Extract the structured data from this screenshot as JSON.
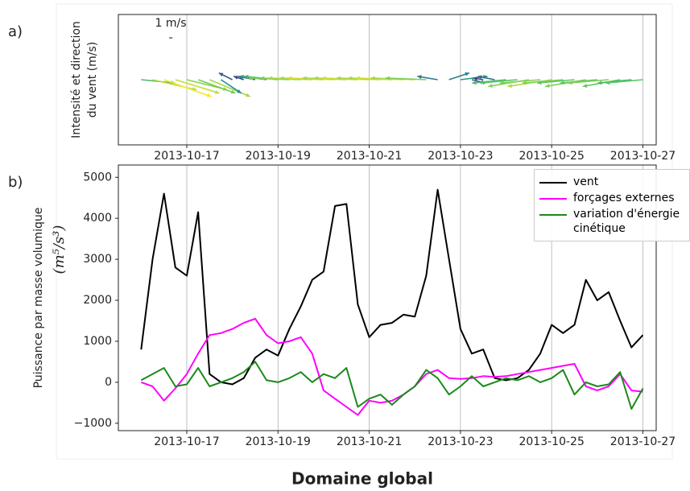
{
  "caption": "Domaine global",
  "chart_data": [
    {
      "type": "quiver",
      "panel_label": "a)",
      "ylabel": [
        "Intensité et direction",
        "du vent (m/s)"
      ],
      "quiver_key": {
        "label": "1 m/s",
        "value": 1
      },
      "colormap": "viridis",
      "clim": [
        0,
        15
      ],
      "grid": "x",
      "xlim": [
        "2013-10-15 12:00",
        "2013-10-27 07:00"
      ],
      "xticks": [
        "2013-10-17",
        "2013-10-19",
        "2013-10-21",
        "2013-10-23",
        "2013-10-25",
        "2013-10-27"
      ],
      "x": [
        "2013-10-16 00:00",
        "2013-10-16 06:00",
        "2013-10-16 12:00",
        "2013-10-16 18:00",
        "2013-10-17 00:00",
        "2013-10-17 06:00",
        "2013-10-17 12:00",
        "2013-10-17 18:00",
        "2013-10-18 00:00",
        "2013-10-18 06:00",
        "2013-10-18 12:00",
        "2013-10-18 18:00",
        "2013-10-19 00:00",
        "2013-10-19 06:00",
        "2013-10-19 12:00",
        "2013-10-19 18:00",
        "2013-10-20 00:00",
        "2013-10-20 06:00",
        "2013-10-20 12:00",
        "2013-10-20 18:00",
        "2013-10-21 00:00",
        "2013-10-21 06:00",
        "2013-10-21 12:00",
        "2013-10-21 18:00",
        "2013-10-22 00:00",
        "2013-10-22 06:00",
        "2013-10-22 12:00",
        "2013-10-22 18:00",
        "2013-10-23 00:00",
        "2013-10-23 06:00",
        "2013-10-23 12:00",
        "2013-10-23 18:00",
        "2013-10-24 00:00",
        "2013-10-24 06:00",
        "2013-10-24 12:00",
        "2013-10-24 18:00",
        "2013-10-25 00:00",
        "2013-10-25 06:00",
        "2013-10-25 12:00",
        "2013-10-25 18:00",
        "2013-10-26 00:00",
        "2013-10-26 06:00",
        "2013-10-26 12:00",
        "2013-10-26 18:00",
        "2013-10-27 00:00"
      ],
      "u": [
        10,
        13,
        14,
        13,
        12,
        11,
        12,
        6,
        -4,
        -3,
        -5,
        -8,
        -10,
        -12,
        -12,
        -13,
        -13,
        -14,
        -13,
        -13,
        -14,
        -13,
        -13,
        -14,
        -13,
        -12,
        -6,
        6,
        8,
        4,
        -3,
        -5,
        -10,
        -11,
        -12,
        -12,
        -13,
        -12,
        -11,
        -12,
        -11,
        -12,
        -11,
        -10,
        -11
      ],
      "v": [
        -1,
        -3,
        -5,
        -4,
        -3,
        -4,
        -5,
        -4,
        2,
        1,
        1,
        1,
        1,
        0.5,
        0.5,
        0.5,
        0.5,
        0.5,
        0.5,
        0.5,
        0.5,
        0.5,
        0.5,
        0.5,
        0.5,
        0.5,
        1,
        2,
        1,
        -1,
        0.5,
        1,
        -1,
        -1,
        -2,
        -1,
        -2,
        -1,
        -1,
        -2,
        -1,
        -1,
        -2,
        -1,
        -1
      ]
    },
    {
      "type": "line",
      "panel_label": "b)",
      "ylabel": "Puissance par masse volumique",
      "ylabel_units": "(m⁵/s³)",
      "grid": "x",
      "legend": "upper right",
      "xlim": [
        "2013-10-15 12:00",
        "2013-10-27 07:00"
      ],
      "xticks": [
        "2013-10-17",
        "2013-10-19",
        "2013-10-21",
        "2013-10-23",
        "2013-10-25",
        "2013-10-27"
      ],
      "ylim": [
        -1180,
        5300
      ],
      "yticks": [
        {
          "value": -1000,
          "label": "−1000"
        },
        0,
        1000,
        2000,
        3000,
        4000,
        5000
      ],
      "x": [
        "2013-10-16 00:00",
        "2013-10-16 06:00",
        "2013-10-16 12:00",
        "2013-10-16 18:00",
        "2013-10-17 00:00",
        "2013-10-17 06:00",
        "2013-10-17 12:00",
        "2013-10-17 18:00",
        "2013-10-18 00:00",
        "2013-10-18 06:00",
        "2013-10-18 12:00",
        "2013-10-18 18:00",
        "2013-10-19 00:00",
        "2013-10-19 06:00",
        "2013-10-19 12:00",
        "2013-10-19 18:00",
        "2013-10-20 00:00",
        "2013-10-20 06:00",
        "2013-10-20 12:00",
        "2013-10-20 18:00",
        "2013-10-21 00:00",
        "2013-10-21 06:00",
        "2013-10-21 12:00",
        "2013-10-21 18:00",
        "2013-10-22 00:00",
        "2013-10-22 06:00",
        "2013-10-22 12:00",
        "2013-10-22 18:00",
        "2013-10-23 00:00",
        "2013-10-23 06:00",
        "2013-10-23 12:00",
        "2013-10-23 18:00",
        "2013-10-24 00:00",
        "2013-10-24 06:00",
        "2013-10-24 12:00",
        "2013-10-24 18:00",
        "2013-10-25 00:00",
        "2013-10-25 06:00",
        "2013-10-25 12:00",
        "2013-10-25 18:00",
        "2013-10-26 00:00",
        "2013-10-26 06:00",
        "2013-10-26 12:00",
        "2013-10-26 18:00",
        "2013-10-27 00:00"
      ],
      "series": [
        {
          "name": "vent",
          "color": "#000000",
          "values": [
            800,
            3000,
            4600,
            2800,
            2600,
            4150,
            200,
            0,
            -50,
            100,
            600,
            800,
            650,
            1300,
            1850,
            2500,
            2700,
            4300,
            4350,
            1900,
            1100,
            1400,
            1450,
            1650,
            1600,
            2600,
            4700,
            3000,
            1300,
            700,
            800,
            100,
            50,
            100,
            300,
            700,
            1400,
            1200,
            1400,
            2500,
            2000,
            2200,
            1500,
            850,
            1150
          ]
        },
        {
          "name": "forçages externes",
          "color": "#ff00ff",
          "values": [
            0,
            -100,
            -450,
            -150,
            200,
            700,
            1150,
            1200,
            1300,
            1450,
            1550,
            1150,
            950,
            1000,
            1100,
            700,
            -200,
            -400,
            -600,
            -800,
            -450,
            -500,
            -450,
            -300,
            -100,
            200,
            300,
            100,
            80,
            100,
            150,
            130,
            150,
            200,
            250,
            300,
            350,
            400,
            450,
            -100,
            -200,
            -100,
            200,
            -200,
            -230
          ]
        },
        {
          "name": "variation d'énergie cinétique",
          "color": "#1a8a1a",
          "values": [
            50,
            200,
            350,
            -100,
            -50,
            350,
            -100,
            0,
            100,
            250,
            500,
            50,
            0,
            100,
            250,
            0,
            200,
            100,
            350,
            -600,
            -400,
            -300,
            -550,
            -300,
            -100,
            300,
            100,
            -300,
            -100,
            150,
            -100,
            0,
            100,
            50,
            150,
            0,
            100,
            300,
            -300,
            0,
            -100,
            -50,
            250,
            -650,
            -150
          ]
        }
      ]
    }
  ]
}
